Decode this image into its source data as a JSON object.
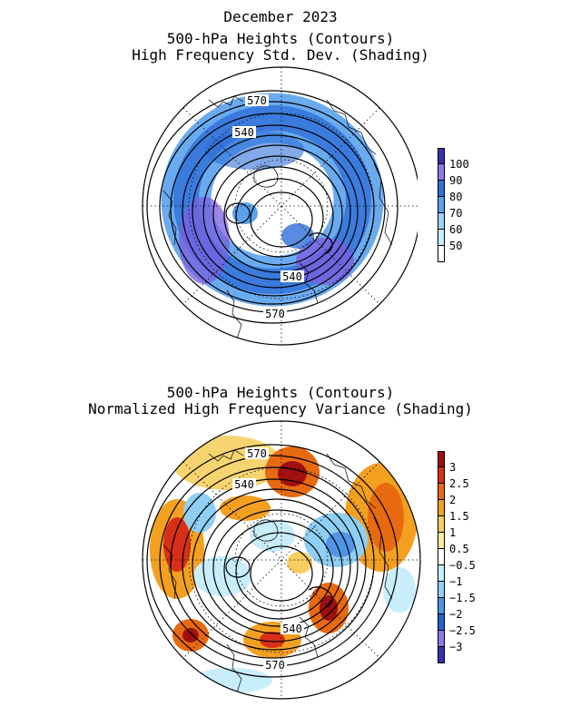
{
  "header": {
    "month_title": "December 2023"
  },
  "panels": [
    {
      "titles": [
        "500-hPa Heights (Contours)",
        "High Frequency Std. Dev. (Shading)"
      ],
      "contour_labels": [
        "570",
        "540",
        "540",
        "570"
      ],
      "colorbar": {
        "labels": [
          "100",
          "90",
          "80",
          "70",
          "60",
          "50"
        ],
        "colors": [
          "#3a2fb0",
          "#8f78e8",
          "#2f6fd8",
          "#5aa2ee",
          "#9ad4f6",
          "#c8eefc",
          "#ffffff"
        ]
      }
    },
    {
      "titles": [
        "500-hPa Heights (Contours)",
        "Normalized High Frequency Variance (Shading)"
      ],
      "contour_labels": [
        "570",
        "540",
        "540",
        "570"
      ],
      "colorbar": {
        "labels": [
          "3",
          "2.5",
          "2",
          "1.5",
          "1",
          "0.5",
          "−0.5",
          "−1",
          "−1.5",
          "−2",
          "−2.5",
          "−3"
        ],
        "colors": [
          "#a01010",
          "#d83018",
          "#e86a10",
          "#f3a020",
          "#f7cf60",
          "#fbeaa0",
          "#ffffff",
          "#c8eefc",
          "#8fcff4",
          "#4f95e6",
          "#2a5fd0",
          "#8f78e8",
          "#3a2fb0"
        ]
      }
    }
  ]
}
